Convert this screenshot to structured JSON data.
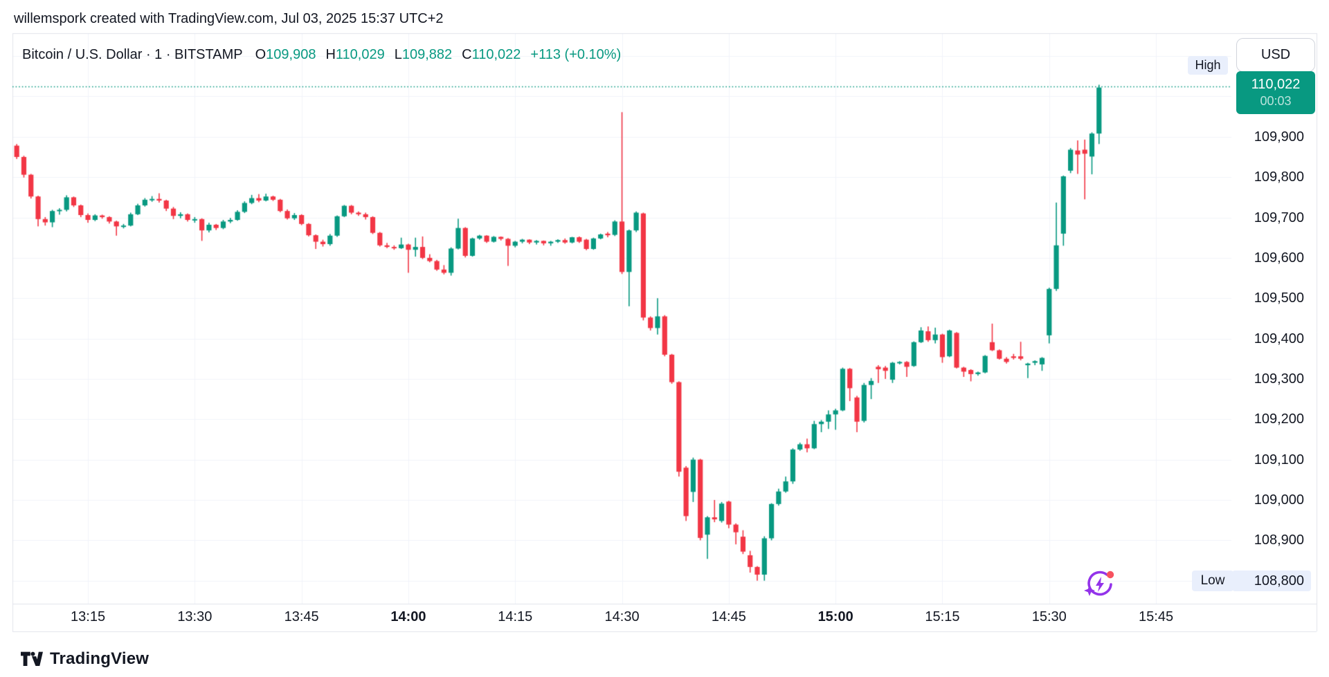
{
  "attribution": "willemspork created with TradingView.com, Jul 03, 2025 15:37 UTC+2",
  "symbol_header": {
    "title": "Bitcoin / U.S. Dollar · 1 · BITSTAMP",
    "ohlc": [
      {
        "label": "O",
        "value": "109,908"
      },
      {
        "label": "H",
        "value": "110,029"
      },
      {
        "label": "L",
        "value": "109,882"
      },
      {
        "label": "C",
        "value": "110,022"
      }
    ],
    "change": "+113 (+0.10%)"
  },
  "price_scale": {
    "currency_button": "USD",
    "high_tag": "High",
    "low_tag": "Low",
    "last_price_badge": {
      "price": "110,022",
      "countdown": "00:03"
    },
    "ticks": [
      {
        "label": "109,900",
        "price": 109900
      },
      {
        "label": "109,800",
        "price": 109800
      },
      {
        "label": "109,700",
        "price": 109700
      },
      {
        "label": "109,600",
        "price": 109600
      },
      {
        "label": "109,500",
        "price": 109500
      },
      {
        "label": "109,400",
        "price": 109400
      },
      {
        "label": "109,300",
        "price": 109300
      },
      {
        "label": "109,200",
        "price": 109200
      },
      {
        "label": "109,100",
        "price": 109100
      },
      {
        "label": "109,000",
        "price": 109000
      },
      {
        "label": "108,900",
        "price": 108900
      }
    ],
    "low_tick": {
      "label": "108,800",
      "price": 108800
    }
  },
  "time_scale": {
    "ticks": [
      {
        "label": "13:15",
        "bold": false
      },
      {
        "label": "13:30",
        "bold": false
      },
      {
        "label": "13:45",
        "bold": false
      },
      {
        "label": "14:00",
        "bold": true
      },
      {
        "label": "14:15",
        "bold": false
      },
      {
        "label": "14:30",
        "bold": false
      },
      {
        "label": "14:45",
        "bold": false
      },
      {
        "label": "15:00",
        "bold": true
      },
      {
        "label": "15:15",
        "bold": false
      },
      {
        "label": "15:30",
        "bold": false
      },
      {
        "label": "15:45",
        "bold": false
      }
    ]
  },
  "footer": {
    "brand": "TradingView"
  },
  "colors": {
    "up": "#089981",
    "down": "#F23645",
    "grid": "#F0F3FA",
    "border": "#E0E3EB",
    "text": "#131722",
    "tag_bg": "#E9EFFC",
    "last_badge_bg": "#089981",
    "spark_purple": "#9333EA",
    "spark_red": "#F7525F"
  },
  "chart_data": {
    "type": "candlestick",
    "title": "Bitcoin / U.S. Dollar",
    "symbol": "BTCUSD",
    "exchange": "BITSTAMP",
    "interval": "1",
    "currency": "USD",
    "current_bar": {
      "open": 109908,
      "high": 110029,
      "low": 109882,
      "close": 110022,
      "change": 113,
      "change_pct": 0.1
    },
    "session_high": 110029,
    "session_low": 108800,
    "y_axis": {
      "min": 108800,
      "max": 110100,
      "step": 100,
      "grid": true
    },
    "x_axis": {
      "start": "13:04",
      "end": "15:37",
      "tick_interval_min": 15
    },
    "columns": [
      "time",
      "open",
      "high",
      "low",
      "close"
    ],
    "candles": [
      [
        "13:04",
        109856,
        109881,
        109852,
        109878
      ],
      [
        "13:05",
        109878,
        109882,
        109845,
        109850
      ],
      [
        "13:06",
        109850,
        109853,
        109799,
        109806
      ],
      [
        "13:07",
        109806,
        109808,
        109747,
        109752
      ],
      [
        "13:08",
        109752,
        109754,
        109678,
        109696
      ],
      [
        "13:09",
        109696,
        109701,
        109680,
        109688
      ],
      [
        "13:10",
        109688,
        109719,
        109676,
        109716
      ],
      [
        "13:11",
        109716,
        109723,
        109707,
        109719
      ],
      [
        "13:12",
        109719,
        109755,
        109715,
        109750
      ],
      [
        "13:13",
        109750,
        109752,
        109726,
        109730
      ],
      [
        "13:14",
        109730,
        109732,
        109701,
        109706
      ],
      [
        "13:15",
        109706,
        109710,
        109687,
        109694
      ],
      [
        "13:16",
        109694,
        109708,
        109691,
        109705
      ],
      [
        "13:17",
        109705,
        109707,
        109697,
        109701
      ],
      [
        "13:18",
        109701,
        109703,
        109685,
        109690
      ],
      [
        "13:19",
        109690,
        109692,
        109655,
        109678
      ],
      [
        "13:20",
        109678,
        109684,
        109673,
        109680
      ],
      [
        "13:21",
        109680,
        109712,
        109678,
        109708
      ],
      [
        "13:22",
        109708,
        109734,
        109706,
        109730
      ],
      [
        "13:23",
        109730,
        109748,
        109727,
        109744
      ],
      [
        "13:24",
        109744,
        109753,
        109739,
        109746
      ],
      [
        "13:25",
        109746,
        109760,
        109737,
        109742
      ],
      [
        "13:26",
        109742,
        109744,
        109716,
        109722
      ],
      [
        "13:27",
        109722,
        109726,
        109696,
        109704
      ],
      [
        "13:28",
        109704,
        109713,
        109698,
        109708
      ],
      [
        "13:29",
        109708,
        109710,
        109690,
        109694
      ],
      [
        "13:30",
        109694,
        109701,
        109687,
        109696
      ],
      [
        "13:31",
        109696,
        109698,
        109642,
        109668
      ],
      [
        "13:32",
        109668,
        109687,
        109663,
        109682
      ],
      [
        "13:33",
        109682,
        109684,
        109669,
        109674
      ],
      [
        "13:34",
        109674,
        109694,
        109671,
        109690
      ],
      [
        "13:35",
        109690,
        109699,
        109686,
        109694
      ],
      [
        "13:36",
        109694,
        109718,
        109692,
        109714
      ],
      [
        "13:37",
        109714,
        109740,
        109711,
        109736
      ],
      [
        "13:38",
        109736,
        109756,
        109733,
        109748
      ],
      [
        "13:39",
        109748,
        109758,
        109738,
        109742
      ],
      [
        "13:40",
        109742,
        109759,
        109740,
        109752
      ],
      [
        "13:41",
        109752,
        109754,
        109741,
        109744
      ],
      [
        "13:42",
        109744,
        109746,
        109713,
        109716
      ],
      [
        "13:43",
        109716,
        109720,
        109695,
        109698
      ],
      [
        "13:44",
        109698,
        109711,
        109694,
        109706
      ],
      [
        "13:45",
        109706,
        109708,
        109681,
        109684
      ],
      [
        "13:46",
        109684,
        109686,
        109653,
        109656
      ],
      [
        "13:47",
        109656,
        109658,
        109622,
        109640
      ],
      [
        "13:48",
        109640,
        109645,
        109628,
        109634
      ],
      [
        "13:49",
        109634,
        109659,
        109630,
        109655
      ],
      [
        "13:50",
        109655,
        109705,
        109652,
        109703
      ],
      [
        "13:51",
        109703,
        109731,
        109701,
        109729
      ],
      [
        "13:52",
        109729,
        109731,
        109708,
        109712
      ],
      [
        "13:53",
        109712,
        109715,
        109704,
        109708
      ],
      [
        "13:54",
        109708,
        109712,
        109695,
        109701
      ],
      [
        "13:55",
        109701,
        109703,
        109659,
        109662
      ],
      [
        "13:56",
        109662,
        109664,
        109628,
        109631
      ],
      [
        "13:57",
        109631,
        109637,
        109624,
        109627
      ],
      [
        "13:58",
        109627,
        109631,
        109620,
        109624
      ],
      [
        "13:59",
        109624,
        109650,
        109622,
        109633
      ],
      [
        "14:00",
        109633,
        109635,
        109563,
        109620
      ],
      [
        "14:01",
        109620,
        109650,
        109603,
        109627
      ],
      [
        "14:02",
        109627,
        109653,
        109597,
        109600
      ],
      [
        "14:03",
        109600,
        109609,
        109589,
        109592
      ],
      [
        "14:04",
        109592,
        109595,
        109568,
        109571
      ],
      [
        "14:05",
        109571,
        109582,
        109559,
        109563
      ],
      [
        "14:06",
        109563,
        109626,
        109556,
        109623
      ],
      [
        "14:07",
        109623,
        109697,
        109621,
        109674
      ],
      [
        "14:08",
        109674,
        109676,
        109601,
        109605
      ],
      [
        "14:09",
        109605,
        109650,
        109603,
        109648
      ],
      [
        "14:10",
        109648,
        109657,
        109645,
        109655
      ],
      [
        "14:11",
        109655,
        109656,
        109637,
        109640
      ],
      [
        "14:12",
        109640,
        109654,
        109638,
        109652
      ],
      [
        "14:13",
        109652,
        109653,
        109643,
        109647
      ],
      [
        "14:14",
        109647,
        109649,
        109580,
        109630
      ],
      [
        "14:15",
        109630,
        109642,
        109626,
        109640
      ],
      [
        "14:16",
        109640,
        109647,
        109636,
        109645
      ],
      [
        "14:17",
        109645,
        109646,
        109634,
        109638
      ],
      [
        "14:18",
        109638,
        109644,
        109633,
        109642
      ],
      [
        "14:19",
        109642,
        109643,
        109631,
        109636
      ],
      [
        "14:20",
        109636,
        109642,
        109630,
        109640
      ],
      [
        "14:21",
        109640,
        109646,
        109637,
        109644
      ],
      [
        "14:22",
        109644,
        109648,
        109635,
        109638
      ],
      [
        "14:23",
        109638,
        109652,
        109636,
        109651
      ],
      [
        "14:24",
        109651,
        109653,
        109637,
        109640
      ],
      [
        "14:25",
        109645,
        109647,
        109619,
        109622
      ],
      [
        "14:26",
        109622,
        109650,
        109620,
        109648
      ],
      [
        "14:27",
        109648,
        109660,
        109646,
        109658
      ],
      [
        "14:28",
        109660,
        109664,
        109651,
        109656
      ],
      [
        "14:29",
        109657,
        109693,
        109654,
        109690
      ],
      [
        "14:30",
        109690,
        109961,
        109560,
        109565
      ],
      [
        "14:31",
        109565,
        109670,
        109480,
        109668
      ],
      [
        "14:32",
        109668,
        109715,
        109664,
        109712
      ],
      [
        "14:33",
        109710,
        109712,
        109445,
        109452
      ],
      [
        "14:34",
        109452,
        109455,
        109420,
        109426
      ],
      [
        "14:35",
        109426,
        109500,
        109410,
        109455
      ],
      [
        "14:36",
        109455,
        109458,
        109356,
        109360
      ],
      [
        "14:37",
        109360,
        109362,
        109288,
        109292
      ],
      [
        "14:38",
        109292,
        109294,
        109058,
        109070
      ],
      [
        "14:39",
        109080,
        109084,
        108948,
        108960
      ],
      [
        "14:40",
        109020,
        109105,
        108995,
        109100
      ],
      [
        "14:41",
        109100,
        109102,
        108900,
        108906
      ],
      [
        "14:42",
        108914,
        108960,
        108854,
        108957
      ],
      [
        "14:43",
        108957,
        109000,
        108945,
        108952
      ],
      [
        "14:44",
        108948,
        108995,
        108944,
        108991
      ],
      [
        "14:45",
        108996,
        108998,
        108930,
        108939
      ],
      [
        "14:46",
        108939,
        108942,
        108890,
        108920
      ],
      [
        "14:47",
        108909,
        108925,
        108866,
        108872
      ],
      [
        "14:48",
        108863,
        108874,
        108820,
        108834
      ],
      [
        "14:49",
        108834,
        108836,
        108800,
        108815
      ],
      [
        "14:50",
        108815,
        108910,
        108800,
        108905
      ],
      [
        "14:51",
        108905,
        108992,
        108900,
        108990
      ],
      [
        "14:52",
        108990,
        109028,
        108986,
        109021
      ],
      [
        "14:53",
        109021,
        109058,
        109018,
        109046
      ],
      [
        "14:54",
        109046,
        109128,
        109040,
        109125
      ],
      [
        "14:55",
        109125,
        109142,
        109122,
        109138
      ],
      [
        "14:56",
        109138,
        109152,
        109118,
        109128
      ],
      [
        "14:57",
        109128,
        109196,
        109126,
        109188
      ],
      [
        "14:58",
        109188,
        109198,
        109168,
        109194
      ],
      [
        "14:59",
        109194,
        109222,
        109176,
        109212
      ],
      [
        "15:00",
        109212,
        109226,
        109174,
        109222
      ],
      [
        "15:01",
        109222,
        109328,
        109220,
        109325
      ],
      [
        "15:02",
        109325,
        109327,
        109245,
        109277
      ],
      [
        "15:03",
        109254,
        109258,
        109168,
        109194
      ],
      [
        "15:04",
        109196,
        109290,
        109192,
        109285
      ],
      [
        "15:05",
        109285,
        109302,
        109250,
        109295
      ],
      [
        "15:06",
        109330,
        109334,
        109290,
        109324
      ],
      [
        "15:07",
        109328,
        109332,
        109300,
        109320
      ],
      [
        "15:08",
        109298,
        109342,
        109290,
        109340
      ],
      [
        "15:09",
        109340,
        109344,
        109336,
        109342
      ],
      [
        "15:10",
        109342,
        109344,
        109305,
        109330
      ],
      [
        "15:11",
        109332,
        109393,
        109330,
        109391
      ],
      [
        "15:12",
        109391,
        109428,
        109389,
        109420
      ],
      [
        "15:13",
        109418,
        109430,
        109392,
        109396
      ],
      [
        "15:14",
        109396,
        109427,
        109388,
        109410
      ],
      [
        "15:15",
        109410,
        109412,
        109340,
        109354
      ],
      [
        "15:16",
        109356,
        109422,
        109354,
        109420
      ],
      [
        "15:17",
        109414,
        109416,
        109326,
        109328
      ],
      [
        "15:18",
        109328,
        109330,
        109305,
        109318
      ],
      [
        "15:19",
        109322,
        109324,
        109294,
        109312
      ],
      [
        "15:20",
        109312,
        109318,
        109308,
        109316
      ],
      [
        "15:21",
        109316,
        109359,
        109314,
        109357
      ],
      [
        "15:22",
        109391,
        109437,
        109369,
        109371
      ],
      [
        "15:23",
        109371,
        109373,
        109348,
        109350
      ],
      [
        "15:24",
        109350,
        109354,
        109338,
        109342
      ],
      [
        "15:25",
        109356,
        109362,
        109348,
        109352
      ],
      [
        "15:26",
        109356,
        109392,
        109346,
        109350
      ],
      [
        "15:27",
        109334,
        109340,
        109302,
        109338
      ],
      [
        "15:28",
        109340,
        109346,
        109334,
        109344
      ],
      [
        "15:29",
        109336,
        109354,
        109320,
        109352
      ],
      [
        "15:30",
        109408,
        109526,
        109388,
        109523
      ],
      [
        "15:31",
        109523,
        109737,
        109518,
        109631
      ],
      [
        "15:32",
        109660,
        109804,
        109630,
        109802
      ],
      [
        "15:33",
        109816,
        109872,
        109810,
        109868
      ],
      [
        "15:34",
        109866,
        109891,
        109808,
        109856
      ],
      [
        "15:35",
        109868,
        109893,
        109745,
        109858
      ],
      [
        "15:36",
        109851,
        109911,
        109807,
        109908
      ],
      [
        "15:37",
        109908,
        110029,
        109882,
        110022
      ]
    ]
  }
}
